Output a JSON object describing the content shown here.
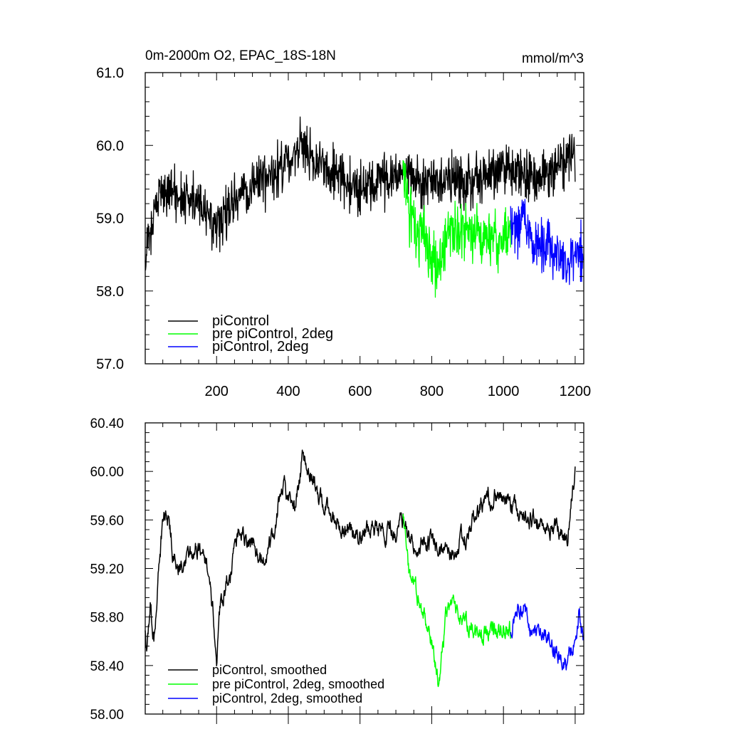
{
  "chart_data": [
    {
      "type": "line",
      "title": "0m-2000m O2, EPAC_18S-18N",
      "units": "mmol/m^3",
      "xlim": [
        1,
        1224
      ],
      "x_ticks": [
        200,
        400,
        600,
        800,
        1000,
        1200
      ],
      "ylim": [
        57.0,
        61.0
      ],
      "y_ticks": [
        "57.0",
        "58.0",
        "59.0",
        "60.0",
        "61.0"
      ],
      "legend": [
        {
          "label": "piControl",
          "color": "#000000"
        },
        {
          "label": "pre piControl, 2deg",
          "color": "#00ff00"
        },
        {
          "label": "piControl, 2deg",
          "color": "#0000ff"
        }
      ],
      "series": [
        {
          "name": "piControl",
          "color": "#000000",
          "x_start": 1,
          "x_end": 1200,
          "noise": 0.32,
          "anchors": [
            [
              1,
              58.6
            ],
            [
              30,
              59.1
            ],
            [
              60,
              59.4
            ],
            [
              100,
              59.3
            ],
            [
              150,
              59.2
            ],
            [
              200,
              58.9
            ],
            [
              260,
              59.3
            ],
            [
              300,
              59.5
            ],
            [
              350,
              59.6
            ],
            [
              400,
              59.8
            ],
            [
              440,
              60.0
            ],
            [
              470,
              59.8
            ],
            [
              500,
              59.7
            ],
            [
              560,
              59.5
            ],
            [
              600,
              59.4
            ],
            [
              650,
              59.5
            ],
            [
              700,
              59.6
            ],
            [
              740,
              59.6
            ],
            [
              800,
              59.5
            ],
            [
              850,
              59.6
            ],
            [
              900,
              59.5
            ],
            [
              950,
              59.6
            ],
            [
              1000,
              59.7
            ],
            [
              1050,
              59.6
            ],
            [
              1100,
              59.6
            ],
            [
              1150,
              59.7
            ],
            [
              1200,
              59.9
            ]
          ]
        },
        {
          "name": "pre piControl, 2deg",
          "color": "#00ff00",
          "x_start": 720,
          "x_end": 1020,
          "noise": 0.36,
          "anchors": [
            [
              720,
              59.6
            ],
            [
              740,
              59.0
            ],
            [
              780,
              58.7
            ],
            [
              800,
              58.5
            ],
            [
              820,
              58.3
            ],
            [
              850,
              58.9
            ],
            [
              880,
              58.8
            ],
            [
              920,
              58.8
            ],
            [
              960,
              58.7
            ],
            [
              1000,
              58.7
            ],
            [
              1020,
              58.8
            ]
          ]
        },
        {
          "name": "piControl, 2deg",
          "color": "#0000ff",
          "x_start": 1020,
          "x_end": 1222,
          "noise": 0.34,
          "anchors": [
            [
              1020,
              58.8
            ],
            [
              1060,
              59.0
            ],
            [
              1080,
              58.6
            ],
            [
              1120,
              58.6
            ],
            [
              1150,
              58.5
            ],
            [
              1180,
              58.4
            ],
            [
              1200,
              58.5
            ],
            [
              1222,
              58.6
            ]
          ]
        }
      ]
    },
    {
      "type": "line",
      "xlim": [
        1,
        1224
      ],
      "x_ticks": [
        200,
        400,
        600,
        800,
        1000,
        1200
      ],
      "ylim": [
        58.0,
        60.4
      ],
      "y_ticks": [
        "58.00",
        "58.40",
        "58.80",
        "59.20",
        "59.60",
        "60.00",
        "60.40"
      ],
      "legend": [
        {
          "label": "piControl, smoothed",
          "color": "#000000"
        },
        {
          "label": "pre piControl, 2deg, smoothed",
          "color": "#00ff00"
        },
        {
          "label": "piControl, 2deg, smoothed",
          "color": "#0000ff"
        }
      ],
      "series": [
        {
          "name": "piControl, smoothed",
          "color": "#000000",
          "x_start": 1,
          "x_end": 1200,
          "noise": 0.09,
          "anchors": [
            [
              1,
              58.65
            ],
            [
              5,
              58.5
            ],
            [
              15,
              58.9
            ],
            [
              25,
              58.6
            ],
            [
              50,
              59.6
            ],
            [
              60,
              59.7
            ],
            [
              80,
              59.3
            ],
            [
              100,
              59.2
            ],
            [
              140,
              59.4
            ],
            [
              180,
              59.2
            ],
            [
              200,
              58.5
            ],
            [
              210,
              58.9
            ],
            [
              240,
              59.2
            ],
            [
              260,
              59.5
            ],
            [
              300,
              59.4
            ],
            [
              330,
              59.3
            ],
            [
              360,
              59.5
            ],
            [
              380,
              59.9
            ],
            [
              420,
              59.7
            ],
            [
              440,
              60.15
            ],
            [
              470,
              59.9
            ],
            [
              500,
              59.7
            ],
            [
              550,
              59.5
            ],
            [
              600,
              59.5
            ],
            [
              650,
              59.5
            ],
            [
              700,
              59.5
            ],
            [
              720,
              59.6
            ],
            [
              750,
              59.4
            ],
            [
              800,
              59.4
            ],
            [
              850,
              59.3
            ],
            [
              900,
              59.5
            ],
            [
              950,
              59.8
            ],
            [
              1000,
              59.8
            ],
            [
              1050,
              59.6
            ],
            [
              1100,
              59.6
            ],
            [
              1150,
              59.5
            ],
            [
              1180,
              59.45
            ],
            [
              1200,
              60.0
            ]
          ]
        },
        {
          "name": "pre piControl, 2deg, smoothed",
          "color": "#00ff00",
          "x_start": 720,
          "x_end": 1020,
          "noise": 0.09,
          "anchors": [
            [
              720,
              59.6
            ],
            [
              740,
              59.1
            ],
            [
              760,
              59.0
            ],
            [
              780,
              58.8
            ],
            [
              800,
              58.6
            ],
            [
              820,
              58.25
            ],
            [
              840,
              58.8
            ],
            [
              860,
              59.0
            ],
            [
              880,
              58.8
            ],
            [
              920,
              58.7
            ],
            [
              960,
              58.65
            ],
            [
              1000,
              58.7
            ],
            [
              1020,
              58.7
            ]
          ]
        },
        {
          "name": "piControl, 2deg, smoothed",
          "color": "#0000ff",
          "x_start": 1020,
          "x_end": 1222,
          "noise": 0.09,
          "anchors": [
            [
              1020,
              58.7
            ],
            [
              1040,
              58.85
            ],
            [
              1060,
              58.9
            ],
            [
              1080,
              58.6
            ],
            [
              1100,
              58.7
            ],
            [
              1140,
              58.55
            ],
            [
              1170,
              58.4
            ],
            [
              1190,
              58.5
            ],
            [
              1200,
              58.6
            ],
            [
              1210,
              58.85
            ],
            [
              1222,
              58.65
            ]
          ]
        }
      ]
    }
  ]
}
